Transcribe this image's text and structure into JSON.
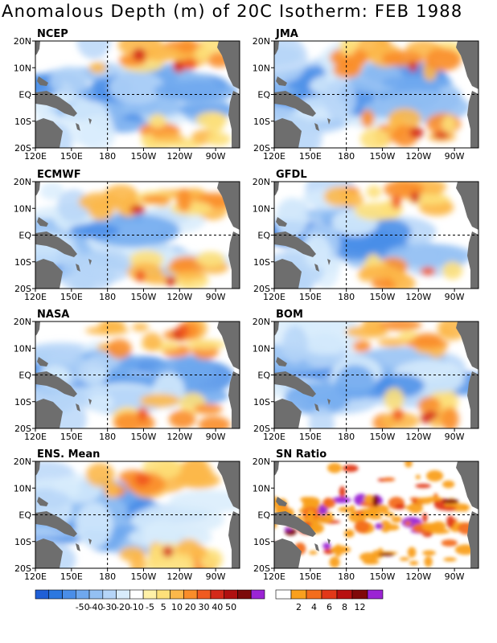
{
  "title": "Anomalous Depth (m) of 20C Isotherm: FEB 1988",
  "chart_data": [
    {
      "type": "heatmap",
      "panel": "NCEP",
      "x_ticks": [
        "120E",
        "150E",
        "180",
        "150W",
        "120W",
        "90W"
      ],
      "y_ticks": [
        "20N",
        "10N",
        "EQ",
        "10S",
        "20S"
      ],
      "xlim": [
        "120E",
        "70W"
      ],
      "ylim": [
        "20S",
        "20N"
      ],
      "colorbar": "anomaly"
    },
    {
      "type": "heatmap",
      "panel": "JMA",
      "x_ticks": [
        "120E",
        "150E",
        "180",
        "150W",
        "120W",
        "90W"
      ],
      "y_ticks": [
        "20N",
        "10N",
        "EQ",
        "10S",
        "20S"
      ],
      "xlim": [
        "120E",
        "70W"
      ],
      "ylim": [
        "20S",
        "20N"
      ],
      "colorbar": "anomaly"
    },
    {
      "type": "heatmap",
      "panel": "ECMWF",
      "x_ticks": [
        "120E",
        "150E",
        "180",
        "150W",
        "120W",
        "90W"
      ],
      "y_ticks": [
        "20N",
        "10N",
        "EQ",
        "10S",
        "20S"
      ],
      "xlim": [
        "120E",
        "70W"
      ],
      "ylim": [
        "20S",
        "20N"
      ],
      "colorbar": "anomaly"
    },
    {
      "type": "heatmap",
      "panel": "GFDL",
      "x_ticks": [
        "120E",
        "150E",
        "180",
        "150W",
        "120W",
        "90W"
      ],
      "y_ticks": [
        "20N",
        "10N",
        "EQ",
        "10S",
        "20S"
      ],
      "xlim": [
        "120E",
        "70W"
      ],
      "ylim": [
        "20S",
        "20N"
      ],
      "colorbar": "anomaly"
    },
    {
      "type": "heatmap",
      "panel": "NASA",
      "x_ticks": [
        "120E",
        "150E",
        "180",
        "150W",
        "120W",
        "90W"
      ],
      "y_ticks": [
        "20N",
        "10N",
        "EQ",
        "10S",
        "20S"
      ],
      "xlim": [
        "120E",
        "70W"
      ],
      "ylim": [
        "20S",
        "20N"
      ],
      "colorbar": "anomaly"
    },
    {
      "type": "heatmap",
      "panel": "BOM",
      "x_ticks": [
        "120E",
        "150E",
        "180",
        "150W",
        "120W",
        "90W"
      ],
      "y_ticks": [
        "20N",
        "10N",
        "EQ",
        "10S",
        "20S"
      ],
      "xlim": [
        "120E",
        "70W"
      ],
      "ylim": [
        "20S",
        "20N"
      ],
      "colorbar": "anomaly"
    },
    {
      "type": "heatmap",
      "panel": "ENS. Mean",
      "x_ticks": [
        "120E",
        "150E",
        "180",
        "150W",
        "120W",
        "90W"
      ],
      "y_ticks": [
        "20N",
        "10N",
        "EQ",
        "10S",
        "20S"
      ],
      "xlim": [
        "120E",
        "70W"
      ],
      "ylim": [
        "20S",
        "20N"
      ],
      "colorbar": "anomaly"
    },
    {
      "type": "heatmap",
      "panel": "SN Ratio",
      "x_ticks": [
        "120E",
        "150E",
        "180",
        "150W",
        "120W",
        "90W"
      ],
      "y_ticks": [
        "20N",
        "10N",
        "EQ",
        "10S",
        "20S"
      ],
      "xlim": [
        "120E",
        "70W"
      ],
      "ylim": [
        "20S",
        "20N"
      ],
      "colorbar": "sn"
    }
  ],
  "colorbars": {
    "anomaly": {
      "labels": [
        "-50",
        "-40",
        "-30",
        "-20",
        "-10",
        "-5",
        "5",
        "10",
        "20",
        "30",
        "40",
        "50"
      ],
      "colors": [
        "#1f5fd6",
        "#2c78e0",
        "#4a8ee8",
        "#6fa8ee",
        "#93c0f3",
        "#b5d5f8",
        "#d8ecfc",
        "#ffffff",
        "#fff1a8",
        "#fde07a",
        "#fcb84a",
        "#f98d2a",
        "#f05a20",
        "#d42a1a",
        "#b01010",
        "#7c0a0a",
        "#9b24d4"
      ]
    },
    "sn": {
      "labels": [
        "2",
        "4",
        "6",
        "8",
        "12"
      ],
      "colors": [
        "#ffffff",
        "#f9a01e",
        "#f36d1c",
        "#e23818",
        "#b81010",
        "#800808",
        "#9b24d4"
      ]
    }
  },
  "colors": {
    "land": "#6e6e6e",
    "frame": "#000000"
  }
}
